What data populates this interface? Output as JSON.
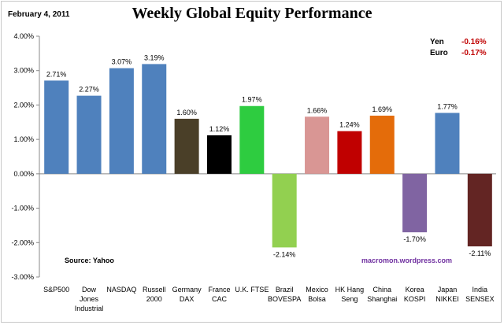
{
  "header": {
    "date": "February 4, 2011"
  },
  "fx": [
    {
      "label": "Yen",
      "value": "-0.16%"
    },
    {
      "label": "Euro",
      "value": "-0.17%"
    }
  ],
  "footer": {
    "source": "Source:  Yahoo",
    "credit": "macromon.wordpress.com"
  },
  "chart_data": {
    "type": "bar",
    "title": "Weekly Global Equity Performance",
    "xlabel": "",
    "ylabel": "",
    "ylim": [
      -3.0,
      4.0
    ],
    "yticks": [
      4.0,
      3.0,
      2.0,
      1.0,
      0.0,
      -1.0,
      -2.0,
      -3.0
    ],
    "ytick_labels": [
      "4.00%",
      "3.00%",
      "2.00%",
      "1.00%",
      "0.00%",
      "-1.00%",
      "-2.00%",
      "-3.00%"
    ],
    "grid": false,
    "legend": "none",
    "categories": [
      [
        "S&P500"
      ],
      [
        "Dow",
        "Jones",
        "Industrial"
      ],
      [
        "NASDAQ"
      ],
      [
        "Russell",
        "2000"
      ],
      [
        "Germany",
        "DAX"
      ],
      [
        "France",
        "CAC"
      ],
      [
        "U.K. FTSE"
      ],
      [
        "Brazil",
        "BOVESPA"
      ],
      [
        "Mexico",
        "Bolsa"
      ],
      [
        "HK Hang",
        "Seng"
      ],
      [
        "China",
        "Shanghai"
      ],
      [
        "Korea",
        "KOSPI"
      ],
      [
        "Japan",
        "NIKKEI"
      ],
      [
        "India",
        "SENSEX"
      ]
    ],
    "values": [
      2.71,
      2.27,
      3.07,
      3.19,
      1.6,
      1.12,
      1.97,
      -2.14,
      1.66,
      1.24,
      1.69,
      -1.7,
      1.77,
      -2.11
    ],
    "value_labels": [
      "2.71%",
      "2.27%",
      "3.07%",
      "3.19%",
      "1.60%",
      "1.12%",
      "1.97%",
      "-2.14%",
      "1.66%",
      "1.24%",
      "1.69%",
      "-1.70%",
      "1.77%",
      "-2.11%"
    ],
    "colors": [
      "#4f81bd",
      "#4f81bd",
      "#4f81bd",
      "#4f81bd",
      "#4a3f28",
      "#000000",
      "#2ecc40",
      "#92d050",
      "#d99694",
      "#c00000",
      "#e46c0a",
      "#8064a2",
      "#4f81bd",
      "#632523"
    ]
  }
}
